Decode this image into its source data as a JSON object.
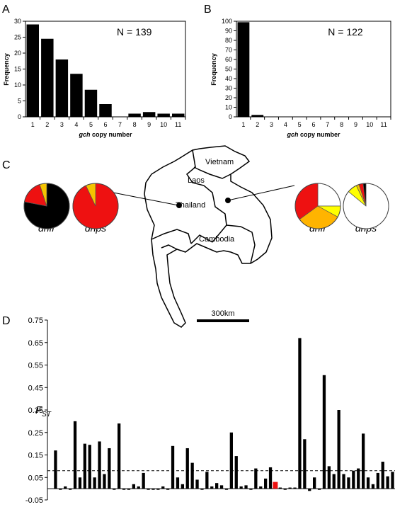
{
  "panels": {
    "a": "A",
    "b": "B",
    "c": "C",
    "d": "D"
  },
  "chart_data": [
    {
      "panel": "A",
      "type": "bar",
      "annotation": "N = 139",
      "xlabel_italic": "gch",
      "xlabel_rest": " copy number",
      "ylabel": "Frequency",
      "categories": [
        "1",
        "2",
        "3",
        "4",
        "5",
        "6",
        "7",
        "8",
        "9",
        "10",
        "11"
      ],
      "values": [
        29,
        24.5,
        18,
        13.5,
        8.5,
        4,
        0,
        1,
        1.5,
        1,
        1
      ],
      "ylim": [
        0,
        30
      ],
      "yticks": [
        "0",
        "5",
        "10",
        "15",
        "20",
        "25",
        "30"
      ]
    },
    {
      "panel": "B",
      "type": "bar",
      "annotation": "N = 122",
      "xlabel_italic": "gch",
      "xlabel_rest": " copy number",
      "ylabel": "Frequency",
      "categories": [
        "1",
        "2",
        "3",
        "4",
        "5",
        "6",
        "7",
        "8",
        "9",
        "10",
        "11"
      ],
      "values": [
        99,
        2,
        0,
        0,
        0,
        0,
        0,
        0,
        0,
        0,
        0
      ],
      "ylim": [
        0,
        100
      ],
      "yticks": [
        "0",
        "10",
        "20",
        "30",
        "40",
        "50",
        "60",
        "70",
        "80",
        "90",
        "100"
      ]
    },
    {
      "panel": "C",
      "type": "pie",
      "map_labels": {
        "vietnam": "Vietnam",
        "laos": "Laos",
        "thailand": "Thailand",
        "cambodia": "Cambodia",
        "scale": "300km"
      },
      "pies": [
        {
          "site": "west",
          "gene": "dhfr",
          "slices": [
            {
              "value": 78,
              "color": "#000000"
            },
            {
              "value": 17,
              "color": "#ee1111"
            },
            {
              "value": 5,
              "color": "#f5c400"
            }
          ]
        },
        {
          "site": "west",
          "gene": "dhps",
          "slices": [
            {
              "value": 93,
              "color": "#ee1111"
            },
            {
              "value": 7,
              "color": "#f5c400"
            }
          ]
        },
        {
          "site": "east",
          "gene": "dhfr",
          "slices": [
            {
              "value": 25,
              "color": "#ffffff"
            },
            {
              "value": 8,
              "color": "#ffff00"
            },
            {
              "value": 32,
              "color": "#ffb400"
            },
            {
              "value": 35,
              "color": "#ee1111"
            }
          ]
        },
        {
          "site": "east",
          "gene": "dhps",
          "slices": [
            {
              "value": 86,
              "color": "#ffffff"
            },
            {
              "value": 7,
              "color": "#ffff00"
            },
            {
              "value": 2,
              "color": "#f5c400"
            },
            {
              "value": 3,
              "color": "#ee1111"
            },
            {
              "value": 2,
              "color": "#000000"
            }
          ]
        }
      ]
    },
    {
      "panel": "D",
      "type": "bar",
      "ylabel_main": "F",
      "ylabel_sub": "ST",
      "ylim": [
        -0.05,
        0.75
      ],
      "yticks": [
        "-0.05",
        "0.05",
        "0.15",
        "0.25",
        "0.35",
        "0.45",
        "0.55",
        "0.65",
        "0.75"
      ],
      "threshold": 0.08,
      "highlight_index": 45,
      "highlight_color": "#ee1111",
      "values": [
        0.17,
        -0.005,
        0.01,
        -0.005,
        0.3,
        0.05,
        0.2,
        0.195,
        0.05,
        0.21,
        0.065,
        0.18,
        -0.005,
        0.29,
        -0.005,
        -0.005,
        0.02,
        0.01,
        0.07,
        -0.005,
        -0.005,
        -0.005,
        0.01,
        -0.005,
        0.19,
        0.05,
        0.02,
        0.18,
        0.115,
        0.04,
        -0.005,
        0.075,
        0.01,
        0.025,
        0.015,
        -0.005,
        0.25,
        0.145,
        0.01,
        0.015,
        -0.005,
        0.09,
        0.01,
        0.045,
        0.095,
        0.03,
        0.005,
        -0.005,
        0.005,
        0.005,
        0.67,
        0.22,
        -0.01,
        0.05,
        -0.005,
        0.505,
        0.1,
        0.065,
        0.35,
        0.065,
        0.05,
        0.08,
        0.09,
        0.245,
        0.05,
        0.02,
        0.07,
        0.12,
        0.055,
        0.075
      ]
    }
  ]
}
